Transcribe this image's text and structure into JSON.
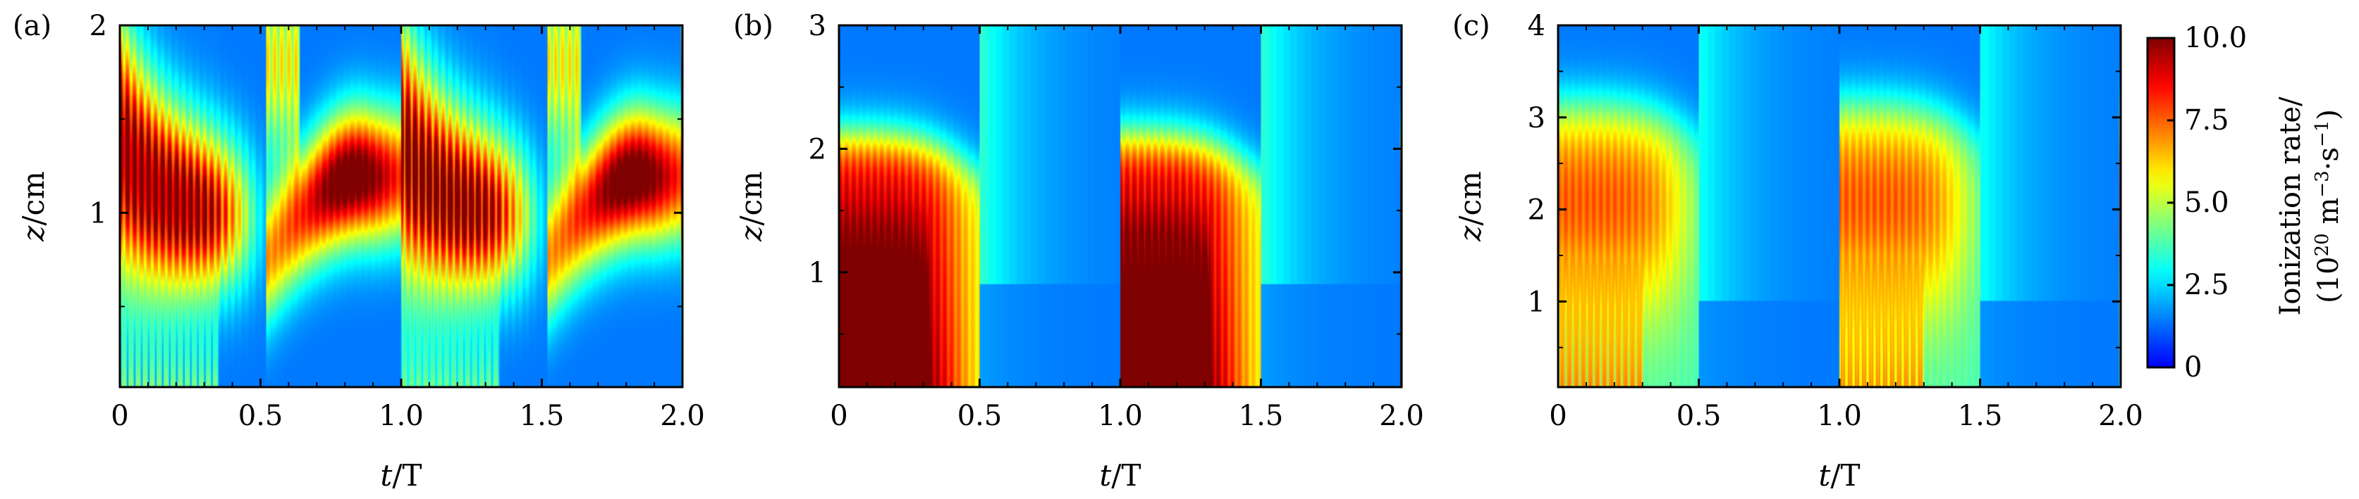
{
  "chart_data": [
    {
      "type": "heatmap",
      "panel_label": "(a)",
      "xlabel_var": "t",
      "xlabel_unit": "/T",
      "ylabel_var": "z",
      "ylabel_unit": "/cm",
      "xlim": [
        0,
        2.0
      ],
      "ylim": [
        0.07,
        2.0
      ],
      "xticks": [
        "0",
        "0.5",
        "1.0",
        "1.5",
        "2.0"
      ],
      "xtick_values": [
        0,
        0.5,
        1.0,
        1.5,
        2.0
      ],
      "yticks": [
        "1",
        "2"
      ],
      "ytick_values": [
        1,
        2
      ],
      "pattern": "a"
    },
    {
      "type": "heatmap",
      "panel_label": "(b)",
      "xlabel_var": "t",
      "xlabel_unit": "/T",
      "ylabel_var": "z",
      "ylabel_unit": "/cm",
      "xlim": [
        0,
        2.0
      ],
      "ylim": [
        0.07,
        3.0
      ],
      "xticks": [
        "0",
        "0.5",
        "1.0",
        "1.5",
        "2.0"
      ],
      "xtick_values": [
        0,
        0.5,
        1.0,
        1.5,
        2.0
      ],
      "yticks": [
        "1",
        "2",
        "3"
      ],
      "ytick_values": [
        1,
        2,
        3
      ],
      "pattern": "b"
    },
    {
      "type": "heatmap",
      "panel_label": "(c)",
      "xlabel_var": "t",
      "xlabel_unit": "/T",
      "ylabel_var": "z",
      "ylabel_unit": "/cm",
      "xlim": [
        0,
        2.0
      ],
      "ylim": [
        0.07,
        4.0
      ],
      "xticks": [
        "0",
        "0.5",
        "1.0",
        "1.5",
        "2.0"
      ],
      "xtick_values": [
        0,
        0.5,
        1.0,
        1.5,
        2.0
      ],
      "yticks": [
        "1",
        "2",
        "3",
        "4"
      ],
      "ytick_values": [
        1,
        2,
        3,
        4
      ],
      "pattern": "c"
    }
  ],
  "colorbar": {
    "label_line1": "Ionization rate/",
    "label_line2_pre": "(10",
    "label_line2_exp1": "20",
    "label_line2_mid": " m",
    "label_line2_exp2": "−3",
    "label_line2_dot": "·s",
    "label_line2_exp3": "−1",
    "label_line2_post": ")",
    "ticks": [
      "0",
      "2.5",
      "5.0",
      "7.5",
      "10.0"
    ],
    "tick_values": [
      0,
      2.5,
      5.0,
      7.5,
      10.0
    ],
    "range": [
      0,
      10.0
    ],
    "colormap": "jet"
  }
}
